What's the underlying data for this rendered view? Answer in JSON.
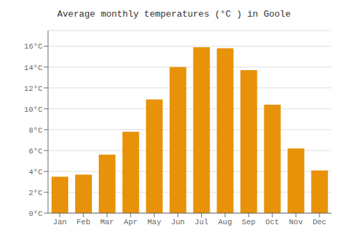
{
  "chart_data": {
    "type": "bar",
    "title": "Average monthly temperatures (°C ) in Goole",
    "categories": [
      "Jan",
      "Feb",
      "Mar",
      "Apr",
      "May",
      "Jun",
      "Jul",
      "Aug",
      "Sep",
      "Oct",
      "Nov",
      "Dec"
    ],
    "values": [
      3.5,
      3.7,
      5.6,
      7.8,
      10.9,
      14.0,
      15.9,
      15.8,
      13.7,
      10.4,
      6.2,
      4.1
    ],
    "color": "#E8920A",
    "ylim": [
      0,
      17.5
    ],
    "yticks": [
      {
        "value": 0,
        "label": "0°C"
      },
      {
        "value": 2,
        "label": "2°C"
      },
      {
        "value": 4,
        "label": "4°C"
      },
      {
        "value": 6,
        "label": "6°C"
      },
      {
        "value": 8,
        "label": "8°C"
      },
      {
        "value": 10,
        "label": "10°C"
      },
      {
        "value": 12,
        "label": "12°C"
      },
      {
        "value": 14,
        "label": "14°C"
      },
      {
        "value": 16,
        "label": "16°C"
      }
    ],
    "grid": true
  }
}
